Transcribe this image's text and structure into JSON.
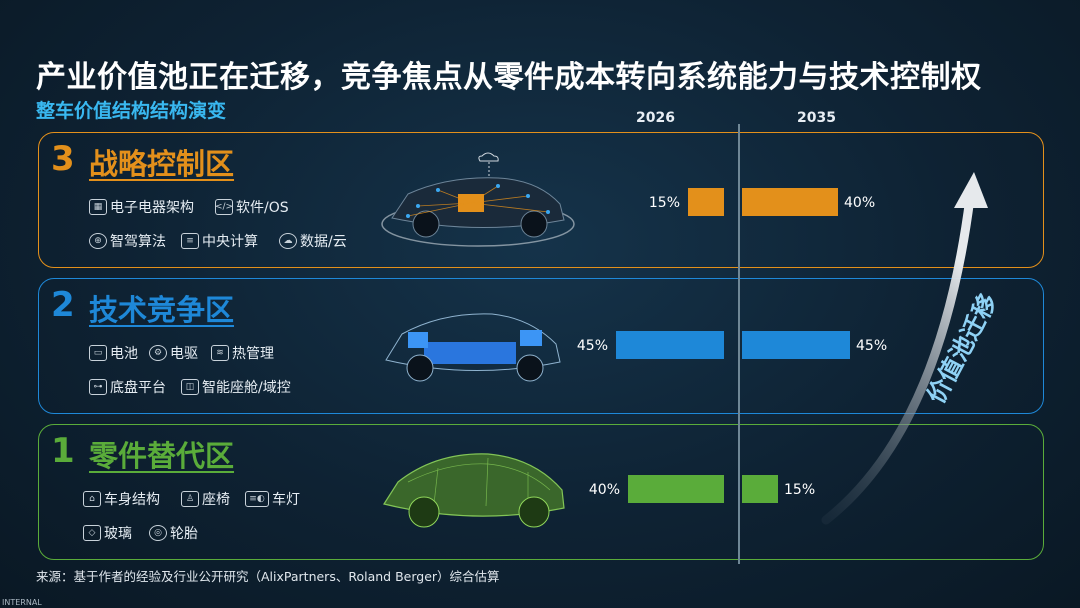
{
  "title": "产业价值池正在迁移，竞争焦点从零件成本转向系统能力与技术控制权",
  "subtitle": "整车价值结构结构演变",
  "years": [
    "2026",
    "2035"
  ],
  "zones": [
    {
      "num": "3",
      "name": "战略控制区",
      "color": "#e3901b",
      "items": [
        {
          "icon": "chip-icon",
          "glyph": "▦",
          "label": "电子电器架构"
        },
        {
          "icon": "code-window-icon",
          "glyph": "</>",
          "label": "软件/OS"
        },
        {
          "icon": "steering-wheel-icon",
          "glyph": "⊕",
          "label": "智驾算法"
        },
        {
          "icon": "compute-icon",
          "glyph": "≡",
          "label": "中央计算"
        },
        {
          "icon": "cloud-icon",
          "glyph": "☁",
          "label": "数据/云"
        }
      ]
    },
    {
      "num": "2",
      "name": "技术竞争区",
      "color": "#1e88d8",
      "items": [
        {
          "icon": "battery-icon",
          "glyph": "▭",
          "label": "电池"
        },
        {
          "icon": "motor-icon",
          "glyph": "⚙",
          "label": "电驱"
        },
        {
          "icon": "heat-icon",
          "glyph": "≋",
          "label": "热管理"
        },
        {
          "icon": "chassis-icon",
          "glyph": "⊶",
          "label": "底盘平台"
        },
        {
          "icon": "cockpit-icon",
          "glyph": "◫",
          "label": "智能座舱/域控"
        }
      ]
    },
    {
      "num": "1",
      "name": "零件替代区",
      "color": "#5aac3a",
      "items": [
        {
          "icon": "car-body-icon",
          "glyph": "⌂",
          "label": "车身结构"
        },
        {
          "icon": "seat-icon",
          "glyph": "♙",
          "label": "座椅"
        },
        {
          "icon": "headlight-icon",
          "glyph": "≡◐",
          "label": "车灯"
        },
        {
          "icon": "glass-icon",
          "glyph": "◇",
          "label": "玻璃"
        },
        {
          "icon": "tire-icon",
          "glyph": "◎",
          "label": "轮胎"
        }
      ]
    }
  ],
  "chart_data": {
    "type": "bar",
    "categories": [
      "战略控制区",
      "技术竞争区",
      "零件替代区"
    ],
    "x": [
      "2026",
      "2035"
    ],
    "series": [
      {
        "name": "2026",
        "values": [
          15,
          45,
          40
        ]
      },
      {
        "name": "2035",
        "values": [
          40,
          45,
          15
        ]
      }
    ],
    "unit": "%",
    "colors": [
      "#e3901b",
      "#1e88d8",
      "#5aac3a"
    ]
  },
  "arrow_label": "价值池迁移",
  "source": "来源：基于作者的经验及行业公开研究（AlixPartners、Roland Berger）综合估算",
  "footer_tag": "INTERNAL"
}
